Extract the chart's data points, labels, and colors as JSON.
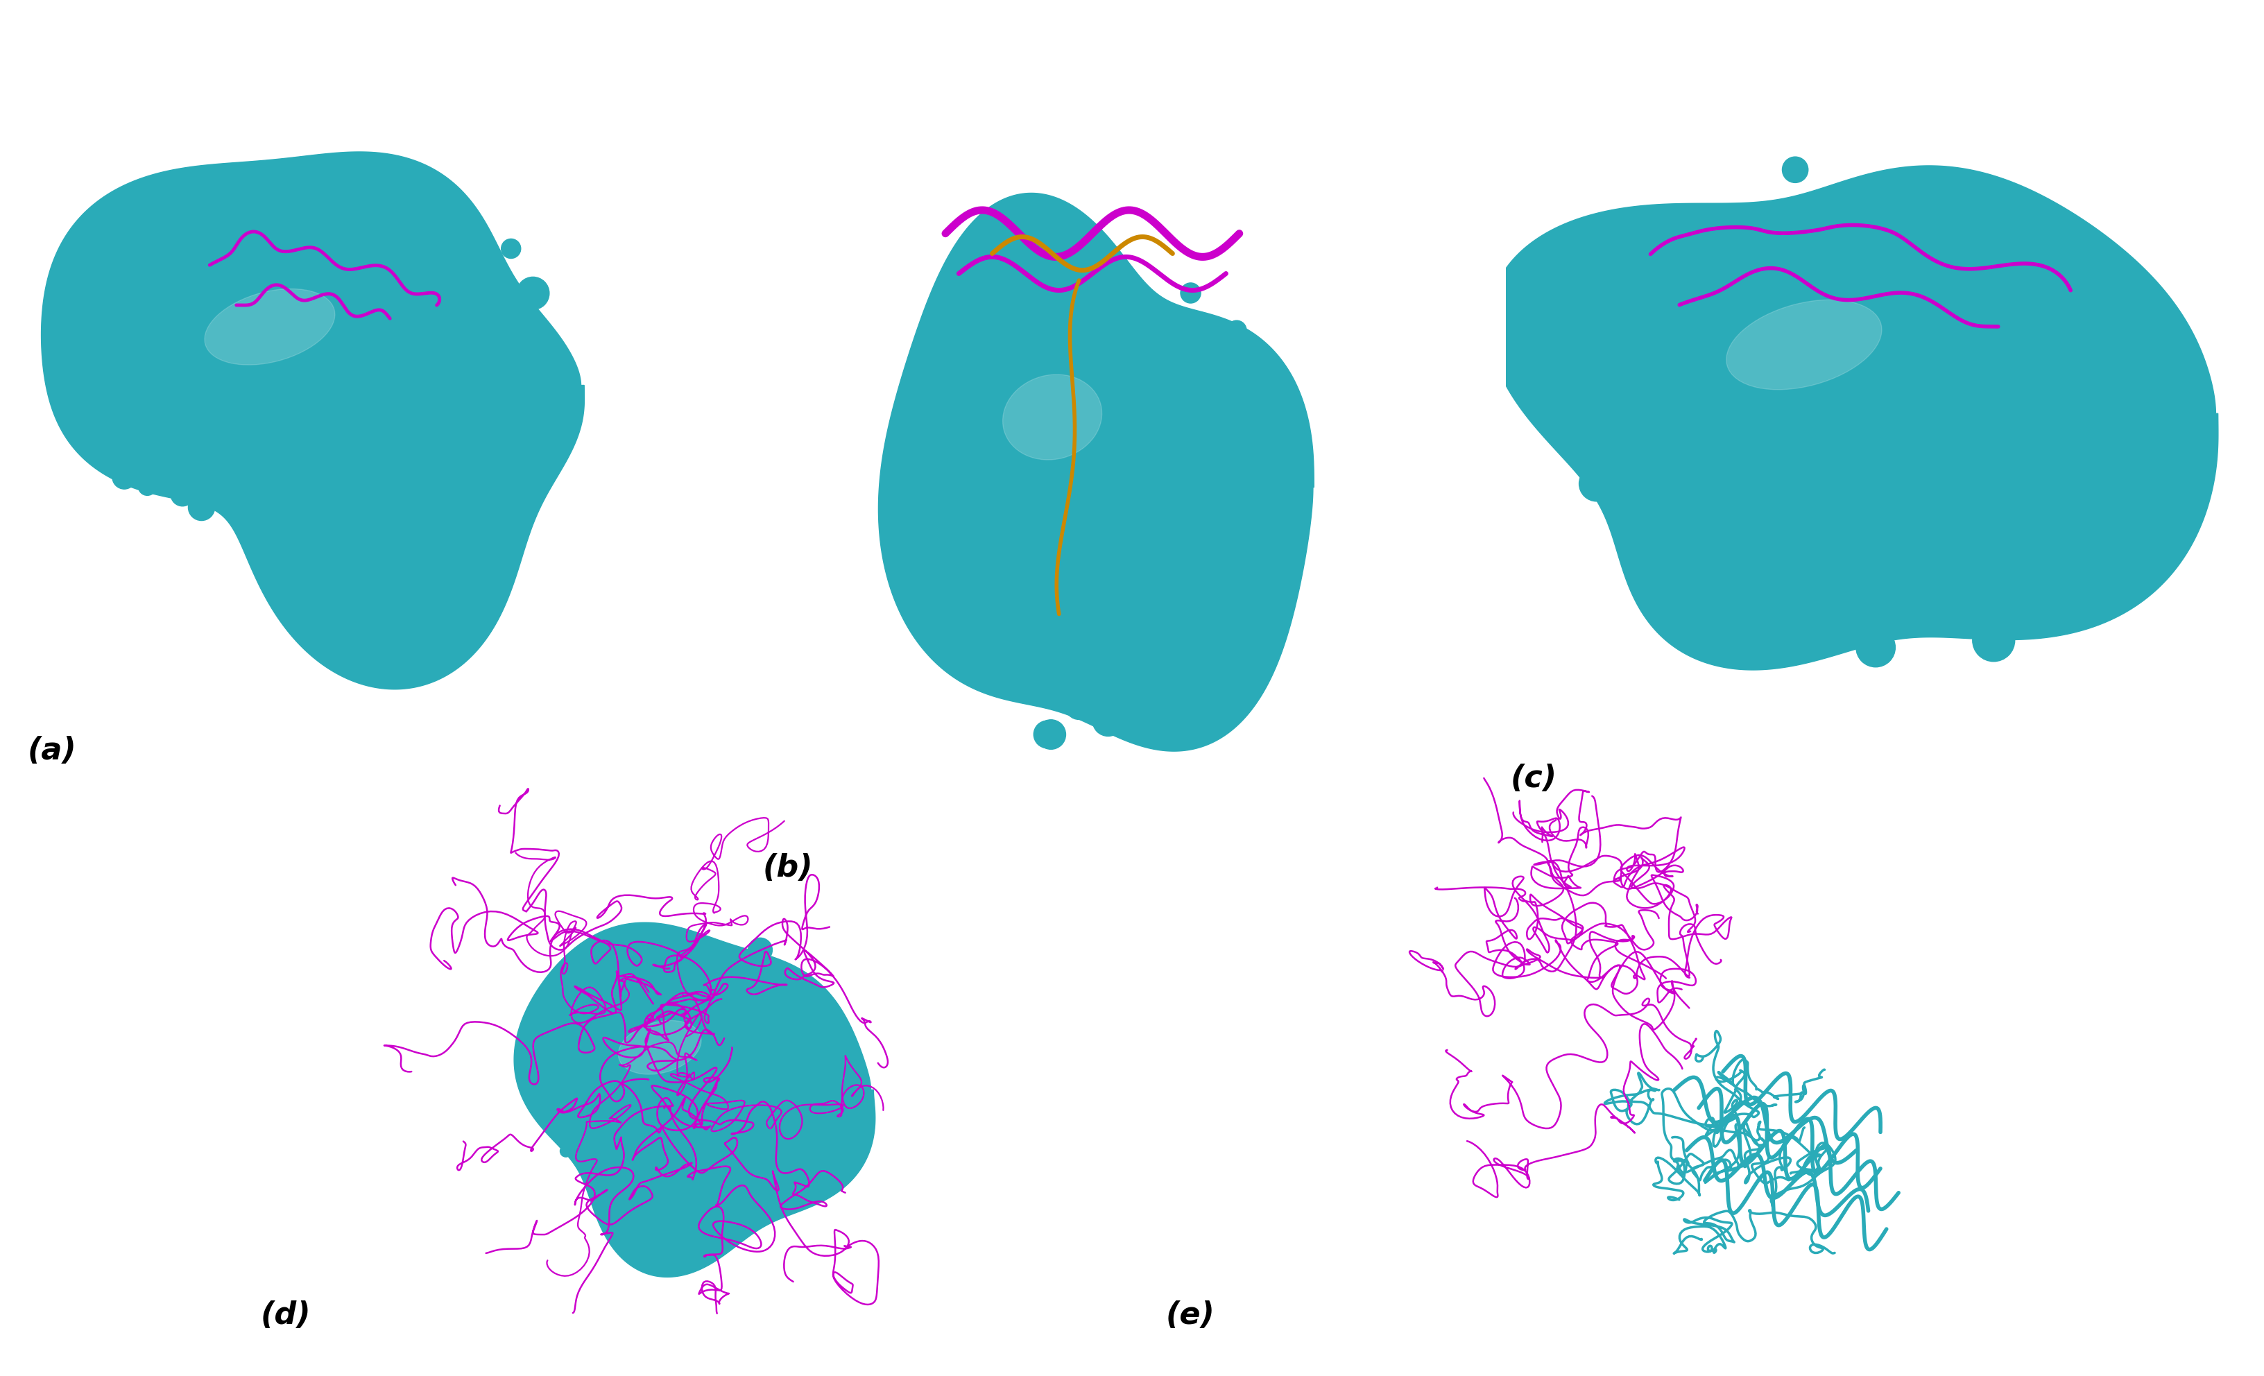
{
  "figure_width": 32.64,
  "figure_height": 19.84,
  "background_color": "#ffffff",
  "panel_labels": [
    "(a)",
    "(b)",
    "(c)",
    "(d)",
    "(e)"
  ],
  "label_fontsize": 36,
  "label_color": "#000000",
  "teal_color": "#2AABB8",
  "teal_dark": "#1A8090",
  "teal_light": "#50D0E0",
  "magenta_color": "#CC00CC",
  "orange_color": "#CC8800",
  "white": "#ffffff"
}
